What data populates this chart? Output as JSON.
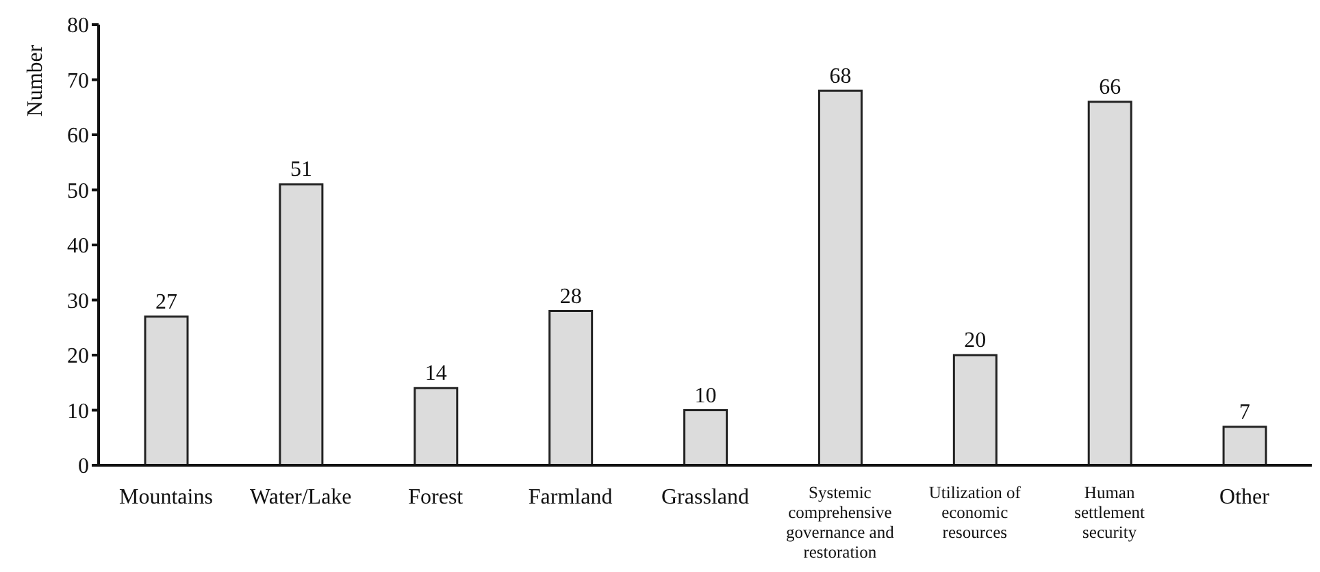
{
  "chart_data": {
    "type": "bar",
    "ylabel": "Number",
    "categories": [
      "Mountains",
      "Water/Lake",
      "Forest",
      "Farmland",
      "Grassland",
      "Systemic comprehensive governance and restoration",
      "Utilization of economic resources",
      "Human settlement security",
      "Other"
    ],
    "values": [
      27,
      51,
      14,
      28,
      10,
      68,
      20,
      66,
      7
    ],
    "color": "#dcdcdc",
    "ylim": [
      0,
      80
    ],
    "yticks": [
      0,
      10,
      20,
      30,
      40,
      50,
      60,
      70,
      80
    ],
    "data_labels": true,
    "grid": false,
    "legend": false
  }
}
